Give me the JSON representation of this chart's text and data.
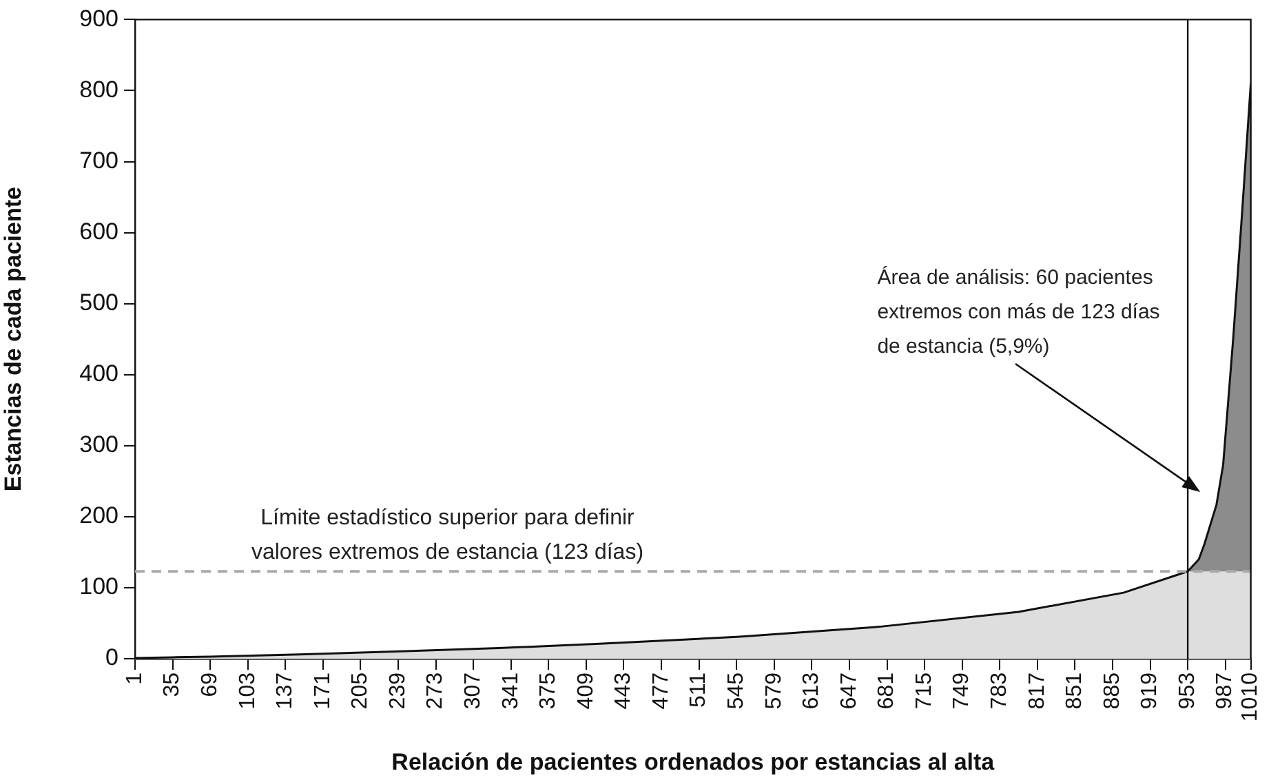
{
  "chart_data": {
    "type": "area",
    "xlabel": "Relación de pacientes ordenados por estancias al alta",
    "ylabel": "Estancias de cada paciente",
    "x": [
      1,
      35,
      69,
      150,
      232,
      330,
      421,
      548,
      674,
      800,
      895,
      953,
      963,
      968,
      979,
      985,
      994,
      1002,
      1010
    ],
    "series": [
      {
        "color": "#dedede",
        "values": [
          1,
          2,
          3,
          6,
          10,
          15,
          21,
          31,
          45,
          66,
          93,
          123,
          123,
          123,
          123,
          123,
          123,
          123,
          123
        ]
      },
      {
        "color": "#8c8c8c",
        "x": [
          953,
          963,
          968,
          979,
          985,
          994,
          1002,
          1010
        ],
        "values": [
          123,
          140,
          161,
          217,
          273,
          449,
          625,
          810
        ]
      },
      {
        "type": "line",
        "color": "#111111",
        "values": [
          1,
          2,
          3,
          6,
          10,
          15,
          21,
          31,
          45,
          66,
          93,
          123,
          140,
          161,
          217,
          273,
          449,
          625,
          810
        ]
      }
    ],
    "marker": "none",
    "grid": false,
    "xlim": [
      1,
      1010
    ],
    "xticks": [
      1,
      35,
      69,
      103,
      137,
      171,
      205,
      239,
      273,
      307,
      341,
      375,
      409,
      443,
      477,
      511,
      545,
      579,
      613,
      647,
      681,
      715,
      749,
      783,
      817,
      851,
      885,
      919,
      953,
      987,
      1010
    ],
    "ylim": [
      0,
      900
    ],
    "yticks": [
      0,
      100,
      200,
      300,
      400,
      500,
      600,
      700,
      800,
      900
    ],
    "ref_lines": [
      {
        "axis": "y",
        "value": 123,
        "label": "Límite estadístico superior para definir\nvalores extremos de estancia (123 días)",
        "color": "#aaaaaa",
        "line_style": "dashed"
      },
      {
        "axis": "x",
        "value": 953,
        "color": "#111111",
        "line_style": "solid"
      }
    ],
    "annotations": [
      "Área de análisis: 60 pacientes\nextremos con más de 123 días\nde estancia (5,9%)"
    ]
  }
}
